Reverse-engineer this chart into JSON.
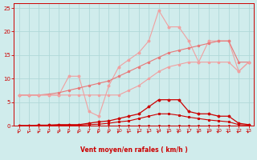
{
  "x": [
    0,
    1,
    2,
    3,
    4,
    5,
    6,
    7,
    8,
    9,
    10,
    11,
    12,
    13,
    14,
    15,
    16,
    17,
    18,
    19,
    20,
    21,
    22,
    23
  ],
  "line_pink_jagged": [
    6.5,
    6.5,
    6.5,
    6.5,
    6.5,
    10.5,
    10.5,
    3.0,
    2.0,
    8.5,
    12.5,
    14.0,
    15.5,
    18.0,
    24.5,
    21.0,
    21.0,
    18.0,
    13.5,
    18.0,
    18.0,
    18.0,
    11.5,
    13.5
  ],
  "line_pink_smooth": [
    6.5,
    6.5,
    6.5,
    6.7,
    7.0,
    7.5,
    8.0,
    8.5,
    9.0,
    9.5,
    10.5,
    11.5,
    12.5,
    13.5,
    14.5,
    15.5,
    16.0,
    16.5,
    17.0,
    17.5,
    18.0,
    18.0,
    13.5,
    13.5
  ],
  "line_pink_lower": [
    6.5,
    6.5,
    6.5,
    6.5,
    6.5,
    6.5,
    6.5,
    6.5,
    6.5,
    6.5,
    6.5,
    7.5,
    8.5,
    10.0,
    11.5,
    12.5,
    13.0,
    13.5,
    13.5,
    13.5,
    13.5,
    13.5,
    11.5,
    13.5
  ],
  "line_red_high": [
    0.0,
    0.0,
    0.1,
    0.1,
    0.2,
    0.2,
    0.2,
    0.5,
    0.8,
    1.0,
    1.5,
    2.0,
    2.5,
    4.0,
    5.5,
    5.5,
    5.5,
    3.0,
    2.5,
    2.5,
    2.0,
    2.0,
    0.5,
    0.2
  ],
  "line_red_low": [
    0.0,
    0.0,
    0.0,
    0.1,
    0.1,
    0.1,
    0.1,
    0.2,
    0.3,
    0.5,
    0.8,
    1.0,
    1.5,
    2.0,
    2.5,
    2.5,
    2.2,
    1.8,
    1.5,
    1.2,
    1.0,
    0.8,
    0.2,
    0.1
  ],
  "line_red_flat": [
    0.0,
    0.0,
    0.0,
    0.0,
    0.0,
    0.0,
    0.0,
    0.0,
    0.0,
    0.0,
    0.0,
    0.0,
    0.0,
    0.0,
    0.0,
    0.0,
    0.0,
    0.0,
    0.0,
    0.0,
    0.0,
    0.0,
    0.0,
    0.0
  ],
  "color_light_pink": "#f0a0a0",
  "color_medium_pink": "#e87878",
  "color_dark_red": "#cc0000",
  "bg_color": "#d0ecec",
  "grid_color": "#b0d8d8",
  "xlabel": "Vent moyen/en rafales ( km/h )",
  "ylim": [
    0,
    26
  ],
  "yticks": [
    0,
    5,
    10,
    15,
    20,
    25
  ],
  "xticks": [
    0,
    1,
    2,
    3,
    4,
    5,
    6,
    7,
    8,
    9,
    10,
    11,
    12,
    13,
    14,
    15,
    16,
    17,
    18,
    19,
    20,
    21,
    22,
    23
  ]
}
